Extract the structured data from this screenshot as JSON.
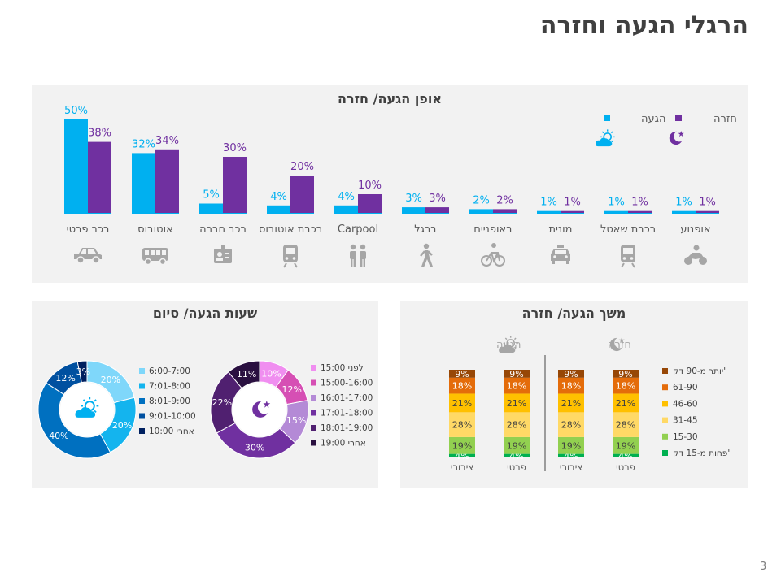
{
  "page": {
    "title": "הרגלי הגעה וחזרה",
    "page_number": "3"
  },
  "colors": {
    "arrival": "#00b0f0",
    "return": "#7030a0",
    "panel": "#f2f2f2",
    "icon": "#a6a6a6"
  },
  "chart_data": [
    {
      "type": "bar",
      "title": "אופן הגעה/ חזרה",
      "categories": [
        "רכב פרטי",
        "אוטובוס",
        "רכב חברה",
        "רכבת אוטובוס",
        "Carpool",
        "ברגל",
        "באופניים",
        "מונית",
        "רכבת שאטל",
        "אופנוע"
      ],
      "category_icons": [
        "car-icon",
        "bus-icon",
        "company-car-badge-icon",
        "train-icon",
        "carpool-people-icon",
        "walking-icon",
        "bicycle-icon",
        "taxi-icon",
        "train-icon",
        "motorcycle-icon"
      ],
      "series": [
        {
          "name": "הגעה",
          "color": "#00b0f0",
          "values": [
            50,
            32,
            5,
            4,
            4,
            3,
            2,
            1,
            1,
            1
          ],
          "labels": [
            "50%",
            "32%",
            "5%",
            "4%",
            "4%",
            "3%",
            "2%",
            "1%",
            "1%",
            "1%"
          ]
        },
        {
          "name": "חזרה",
          "color": "#7030a0",
          "values": [
            38,
            34,
            30,
            20,
            10,
            3,
            2,
            1,
            1,
            1
          ],
          "labels": [
            "38%",
            "34%",
            "30%",
            "20%",
            "10%",
            "3%",
            "2%",
            "1%",
            "1%",
            "1%"
          ]
        }
      ],
      "legend_icons": {
        "arrival": "sun-cloud-icon",
        "return": "moon-star-icon"
      },
      "ylim": [
        0,
        50
      ]
    },
    {
      "type": "pie",
      "title": "שעות הגעה/ סיום",
      "subtitle": "הגעה",
      "center_icon": "sun-cloud-icon",
      "labels": [
        "6:00-7:00",
        "7:01-8:00",
        "8:01-9:00",
        "9:01-10:00",
        "אחרי 10:00"
      ],
      "values": [
        20,
        20,
        40,
        12,
        3
      ],
      "value_labels": [
        "20%",
        "20%",
        "40%",
        "12%",
        "3%"
      ],
      "colors": [
        "#7fd7fa",
        "#14b4ee",
        "#0070c0",
        "#0050a0",
        "#002060"
      ]
    },
    {
      "type": "pie",
      "subtitle": "סיום",
      "center_icon": "moon-star-icon",
      "labels": [
        "לפני 15:00",
        "15:00-16:00",
        "16:01-17:00",
        "17:01-18:00",
        "18:01-19:00",
        "אחרי 19:00"
      ],
      "values": [
        10,
        12,
        15,
        30,
        22,
        11
      ],
      "value_labels": [
        "10%",
        "12%",
        "15%",
        "30%",
        "22%",
        "11%"
      ],
      "colors": [
        "#f08ef0",
        "#d64fb4",
        "#b48ad6",
        "#7030a0",
        "#502070",
        "#2a1040"
      ]
    },
    {
      "type": "bar",
      "stacked": true,
      "title": "משך הגעה/ חזרה",
      "groups": [
        {
          "name": "הגעה",
          "icon": "sun-cloud-icon"
        },
        {
          "name": "חזרה",
          "icon": "moon-star-icon"
        }
      ],
      "categories": [
        "ציבורי",
        "פרטי",
        "ציבורי",
        "פרטי"
      ],
      "category_group": [
        "הגעה",
        "הגעה",
        "חזרה",
        "חזרה"
      ],
      "series": [
        {
          "name": "פחות מ-15 דק'",
          "color": "#00b050",
          "values": [
            4,
            4,
            4,
            4
          ]
        },
        {
          "name": "15-30",
          "color": "#92d050",
          "values": [
            19,
            19,
            19,
            19
          ]
        },
        {
          "name": "31-45",
          "color": "#ffd966",
          "values": [
            28,
            28,
            28,
            28
          ]
        },
        {
          "name": "46-60",
          "color": "#ffc000",
          "values": [
            21,
            21,
            21,
            21
          ]
        },
        {
          "name": "61-90",
          "color": "#e46c0a",
          "values": [
            18,
            18,
            18,
            18
          ]
        },
        {
          "name": "יותר מ-90 דק'",
          "color": "#974706",
          "values": [
            9,
            9,
            9,
            9
          ]
        }
      ]
    }
  ]
}
